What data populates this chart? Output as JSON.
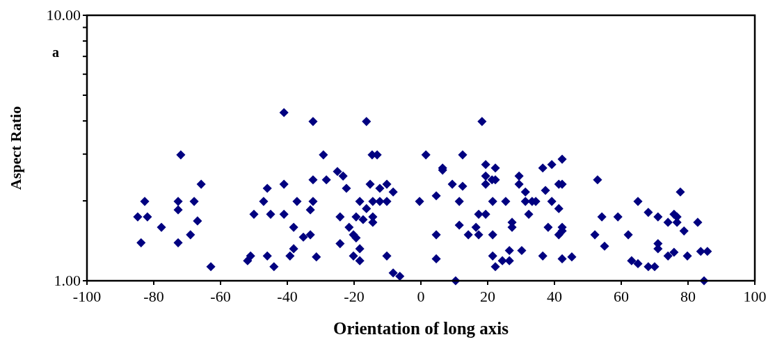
{
  "chart_data": {
    "type": "scatter",
    "xlabel": "Orientation of long axis",
    "ylabel": "Aspect Ratio",
    "annotations": [
      "a"
    ],
    "log": "y",
    "marker": "diamond",
    "xlim": [
      -100,
      100
    ],
    "xticks": [
      -100,
      -80,
      -60,
      -40,
      -20,
      0,
      20,
      40,
      60,
      80,
      100
    ],
    "ylim": [
      1,
      10
    ],
    "yticks": [
      {
        "value": 1,
        "label": "1.00"
      },
      {
        "value": 2,
        "label": null
      },
      {
        "value": 3,
        "label": null
      },
      {
        "value": 4,
        "label": null
      },
      {
        "value": 5,
        "label": null
      },
      {
        "value": 6,
        "label": null
      },
      {
        "value": 7,
        "label": null
      },
      {
        "value": 8,
        "label": null
      },
      {
        "value": 9,
        "label": null
      },
      {
        "value": 10,
        "label": "10.00"
      }
    ],
    "series": [
      {
        "color": "#000080",
        "x": [
          -82.7,
          -84.8,
          -81.9,
          -77.7,
          -83.8,
          -71.9,
          -72.7,
          -72.7,
          -67.9,
          -66.9,
          -69.0,
          -72.7,
          -65.8,
          -62.9,
          -41.0,
          -32.3,
          -29.2,
          -46.0,
          -41.0,
          -32.3,
          -28.3,
          -47.1,
          -37.1,
          -32.3,
          -33.1,
          -50.0,
          -45.0,
          -41.0,
          -38.1,
          -35.2,
          -33.1,
          -38.1,
          -39.2,
          -51.0,
          -51.9,
          -46.0,
          -44.0,
          -31.3,
          -16.3,
          18.3,
          -14.6,
          -13.1,
          1.5,
          12.5,
          -25.0,
          -23.3,
          6.5,
          6.5,
          19.4,
          22.3,
          -22.3,
          -15.2,
          -12.3,
          -10.2,
          -8.3,
          9.4,
          12.5,
          19.4,
          19.4,
          21.3,
          22.3,
          29.4,
          29.4,
          31.3,
          -18.3,
          -14.4,
          -12.3,
          -10.2,
          -16.3,
          -0.4,
          4.6,
          11.5,
          21.5,
          25.4,
          31.3,
          33.3,
          34.4,
          -24.2,
          -19.4,
          -17.3,
          -14.4,
          -14.4,
          17.3,
          19.4,
          32.3,
          -21.5,
          -20.2,
          -19.4,
          11.5,
          16.5,
          27.3,
          27.3,
          14.2,
          17.3,
          21.5,
          4.6,
          -24.2,
          -18.3,
          -20.2,
          -18.3,
          -10.2,
          4.6,
          21.5,
          24.4,
          26.5,
          26.5,
          22.3,
          30.2,
          -8.3,
          -6.3,
          10.4,
          36.5,
          39.2,
          42.3,
          41.3,
          42.3,
          52.9,
          37.3,
          39.2,
          41.3,
          77.7,
          65.0,
          68.1,
          71.0,
          74.0,
          75.8,
          76.7,
          76.7,
          82.9,
          78.8,
          54.2,
          59.0,
          38.1,
          42.3,
          42.3,
          41.3,
          52.1,
          62.1,
          55.0,
          71.0,
          71.0,
          36.5,
          42.3,
          45.2,
          74.0,
          75.8,
          79.8,
          83.8,
          85.8,
          63.1,
          65.0,
          68.1,
          70.0,
          84.8
        ],
        "values": [
          1.99,
          1.74,
          1.74,
          1.59,
          1.39,
          2.98,
          1.99,
          1.85,
          1.99,
          1.68,
          1.49,
          1.39,
          2.31,
          1.13,
          4.3,
          3.98,
          2.98,
          2.23,
          2.31,
          2.4,
          2.4,
          1.99,
          1.99,
          1.99,
          1.85,
          1.78,
          1.78,
          1.78,
          1.59,
          1.46,
          1.49,
          1.32,
          1.24,
          1.24,
          1.19,
          1.24,
          1.13,
          1.23,
          3.98,
          3.98,
          2.98,
          2.98,
          2.98,
          2.98,
          2.58,
          2.48,
          2.66,
          2.61,
          2.74,
          2.66,
          2.23,
          2.31,
          2.23,
          2.31,
          2.16,
          2.31,
          2.27,
          2.48,
          2.31,
          2.4,
          2.4,
          2.48,
          2.31,
          2.16,
          1.99,
          1.99,
          1.99,
          1.99,
          1.87,
          1.99,
          2.09,
          1.99,
          1.99,
          1.99,
          1.99,
          1.99,
          1.99,
          1.74,
          1.74,
          1.7,
          1.74,
          1.66,
          1.78,
          1.78,
          1.78,
          1.59,
          1.49,
          1.45,
          1.62,
          1.59,
          1.66,
          1.59,
          1.49,
          1.49,
          1.49,
          1.49,
          1.38,
          1.32,
          1.24,
          1.19,
          1.24,
          1.21,
          1.24,
          1.19,
          1.19,
          1.3,
          1.13,
          1.3,
          1.07,
          1.04,
          1.0,
          2.66,
          2.74,
          2.87,
          2.31,
          2.31,
          2.4,
          2.19,
          1.99,
          1.87,
          2.16,
          1.99,
          1.81,
          1.74,
          1.66,
          1.78,
          1.74,
          1.66,
          1.66,
          1.54,
          1.74,
          1.74,
          1.59,
          1.59,
          1.54,
          1.49,
          1.49,
          1.49,
          1.35,
          1.38,
          1.32,
          1.24,
          1.21,
          1.23,
          1.24,
          1.28,
          1.24,
          1.29,
          1.29,
          1.19,
          1.16,
          1.13,
          1.13,
          1.0
        ]
      }
    ]
  }
}
